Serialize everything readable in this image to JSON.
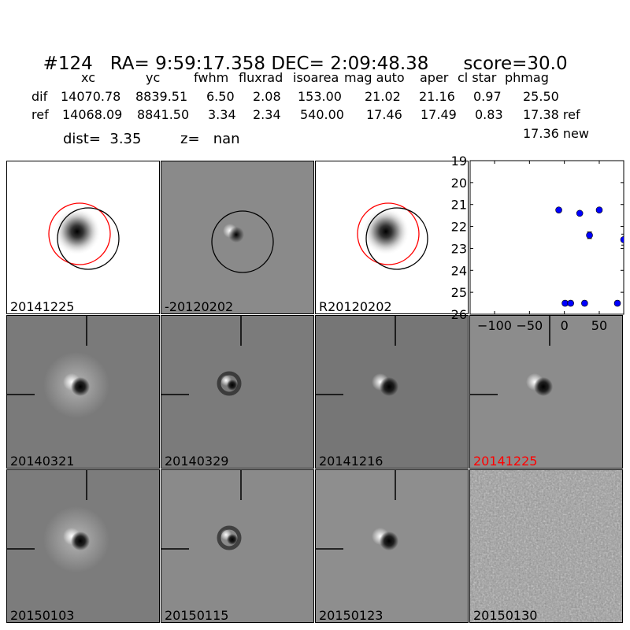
{
  "header": {
    "id": "#124",
    "ra_label": "RA=",
    "ra": "9:59:17.358",
    "dec_label": "DEC=",
    "dec": "2:09:48.38",
    "score": "score=30.0",
    "columns": [
      "xc",
      "yc",
      "fwhm",
      "fluxrad",
      "isoarea",
      "mag auto",
      "aper",
      "cl star",
      "phmag"
    ],
    "dif": {
      "label": "dif",
      "values": [
        "14070.78",
        "8839.51",
        "6.50",
        "2.08",
        "153.00",
        "21.02",
        "21.16",
        "0.97",
        "25.50"
      ]
    },
    "ref": {
      "label": "ref",
      "values": [
        "14068.09",
        "8841.50",
        "3.34",
        "2.34",
        "540.00",
        "17.46",
        "17.49",
        "0.83",
        "17.38 ref"
      ]
    },
    "new_phmag": "17.36 new",
    "dist": "dist=  3.35",
    "z": "z=   nan"
  },
  "stamps": [
    {
      "label": "20141225",
      "style": "new"
    },
    {
      "label": "-20120202",
      "style": "diff"
    },
    {
      "label": "R20120202",
      "style": "new"
    },
    {
      "label": "20140321",
      "style": "dipole",
      "mid": "#7a7a7a",
      "halo": true
    },
    {
      "label": "20140329",
      "style": "ring",
      "mid": "#7b7b7b"
    },
    {
      "label": "20141216",
      "style": "dipole",
      "mid": "#767676",
      "halo": false
    },
    {
      "label": "20141225",
      "style": "dipole",
      "mid": "#8c8c8c",
      "halo": false,
      "label_color": "#ff0000"
    },
    {
      "label": "20150103",
      "style": "dipole",
      "mid": "#7c7c7c",
      "halo": true
    },
    {
      "label": "20150115",
      "style": "ring",
      "mid": "#8a8a8a"
    },
    {
      "label": "20150123",
      "style": "dipole",
      "mid": "#8e8e8e",
      "halo": false
    },
    {
      "label": "20150130",
      "style": "noise",
      "mid": "#9a9a9a"
    }
  ],
  "chart_data": {
    "type": "scatter",
    "title": "",
    "xlabel": "",
    "ylabel": "",
    "xlim": [
      -135,
      85
    ],
    "ylim": [
      26,
      19
    ],
    "y_inverted": true,
    "xticks": [
      -100,
      -50,
      0,
      50
    ],
    "yticks": [
      19,
      20,
      21,
      22,
      23,
      24,
      25,
      26
    ],
    "marker_color": "#0000ff",
    "points": [
      {
        "x": -8,
        "y": 21.25,
        "err": 0
      },
      {
        "x": 22,
        "y": 21.4,
        "err": 0
      },
      {
        "x": 50,
        "y": 21.25,
        "err": 0
      },
      {
        "x": 36,
        "y": 22.4,
        "err": 0.15
      },
      {
        "x": 85,
        "y": 22.6,
        "err": 0.25
      },
      {
        "x": 1,
        "y": 25.5,
        "err": 0.1
      },
      {
        "x": 9,
        "y": 25.5,
        "err": 0.1
      },
      {
        "x": 29,
        "y": 25.5,
        "err": 0.1
      },
      {
        "x": 76,
        "y": 25.5,
        "err": 0.1
      }
    ]
  }
}
